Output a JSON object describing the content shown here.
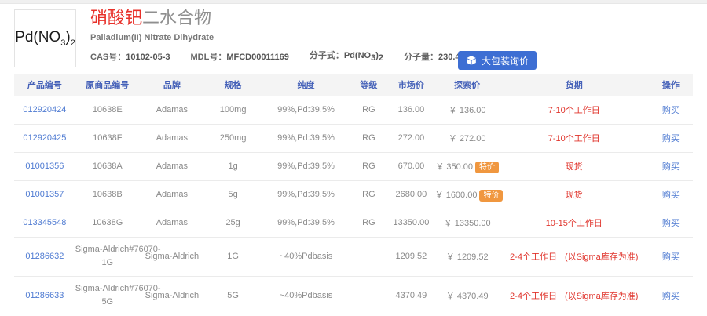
{
  "header": {
    "formula": {
      "p1": "Pd(NO",
      "s1": "3",
      "p2": ")",
      "s2": "2"
    },
    "title_red": "硝酸钯",
    "title_gray": "二水合物",
    "subtitle": "Palladium(II) Nitrate Dihydrate",
    "cas_label": "CAS号：",
    "cas_value": "10102-05-3",
    "mdl_label": "MDL号：",
    "mdl_value": "MFCD00011169",
    "mf_label": "分子式：",
    "mw_label": "分子量：",
    "mw_value": "230.43",
    "bulk_inquiry_label": "大包装询价"
  },
  "table": {
    "headers": [
      "产品编号",
      "原商品编号",
      "品牌",
      "规格",
      "纯度",
      "等级",
      "市场价",
      "探索价",
      "货期",
      "操作"
    ],
    "special_badge": "特价",
    "rows": [
      {
        "product_no": "012920424",
        "orig_no": "10638E",
        "brand": "Adamas",
        "spec": "100mg",
        "purity": "99%,Pd:39.5%",
        "grade": "RG",
        "market_price": "136.00",
        "explore_price": "￥ 136.00",
        "special": false,
        "delivery": "7-10个工作日",
        "delivery_note": "",
        "buy": "购买"
      },
      {
        "product_no": "012920425",
        "orig_no": "10638F",
        "brand": "Adamas",
        "spec": "250mg",
        "purity": "99%,Pd:39.5%",
        "grade": "RG",
        "market_price": "272.00",
        "explore_price": "￥ 272.00",
        "special": false,
        "delivery": "7-10个工作日",
        "delivery_note": "",
        "buy": "购买"
      },
      {
        "product_no": "01001356",
        "orig_no": "10638A",
        "brand": "Adamas",
        "spec": "1g",
        "purity": "99%,Pd:39.5%",
        "grade": "RG",
        "market_price": "670.00",
        "explore_price": "￥ 350.00",
        "special": true,
        "delivery": "现货",
        "delivery_note": "",
        "buy": "购买"
      },
      {
        "product_no": "01001357",
        "orig_no": "10638B",
        "brand": "Adamas",
        "spec": "5g",
        "purity": "99%,Pd:39.5%",
        "grade": "RG",
        "market_price": "2680.00",
        "explore_price": "￥ 1600.00",
        "special": true,
        "delivery": "现货",
        "delivery_note": "",
        "buy": "购买"
      },
      {
        "product_no": "013345548",
        "orig_no": "10638G",
        "brand": "Adamas",
        "spec": "25g",
        "purity": "99%,Pd:39.5%",
        "grade": "RG",
        "market_price": "13350.00",
        "explore_price": "￥ 13350.00",
        "special": false,
        "delivery": "10-15个工作日",
        "delivery_note": "",
        "buy": "购买"
      },
      {
        "product_no": "01286632",
        "orig_no": "Sigma-Aldrich#76070-\n1G",
        "brand": "Sigma-Aldrich",
        "spec": "1G",
        "purity": "~40%Pdbasis",
        "grade": "",
        "market_price": "1209.52",
        "explore_price": "￥ 1209.52",
        "special": false,
        "delivery": "2-4个工作日",
        "delivery_note": "(以Sigma库存为准)",
        "buy": "购买"
      },
      {
        "product_no": "01286633",
        "orig_no": "Sigma-Aldrich#76070-\n5G",
        "brand": "Sigma-Aldrich",
        "spec": "5G",
        "purity": "~40%Pdbasis",
        "grade": "",
        "market_price": "4370.49",
        "explore_price": "￥ 4370.49",
        "special": false,
        "delivery": "2-4个工作日",
        "delivery_note": "(以Sigma库存为准)",
        "buy": "购买"
      }
    ]
  },
  "colors": {
    "header_blue": "#4460b8",
    "link_blue": "#4f7bd2",
    "accent_red": "#e0342c",
    "title_red": "#e8312a",
    "badge_orange": "#f0973f",
    "button_blue": "#3d6ed3",
    "strip_gray": "#f0f0f0",
    "table_head_bg": "#f4f4f4"
  }
}
